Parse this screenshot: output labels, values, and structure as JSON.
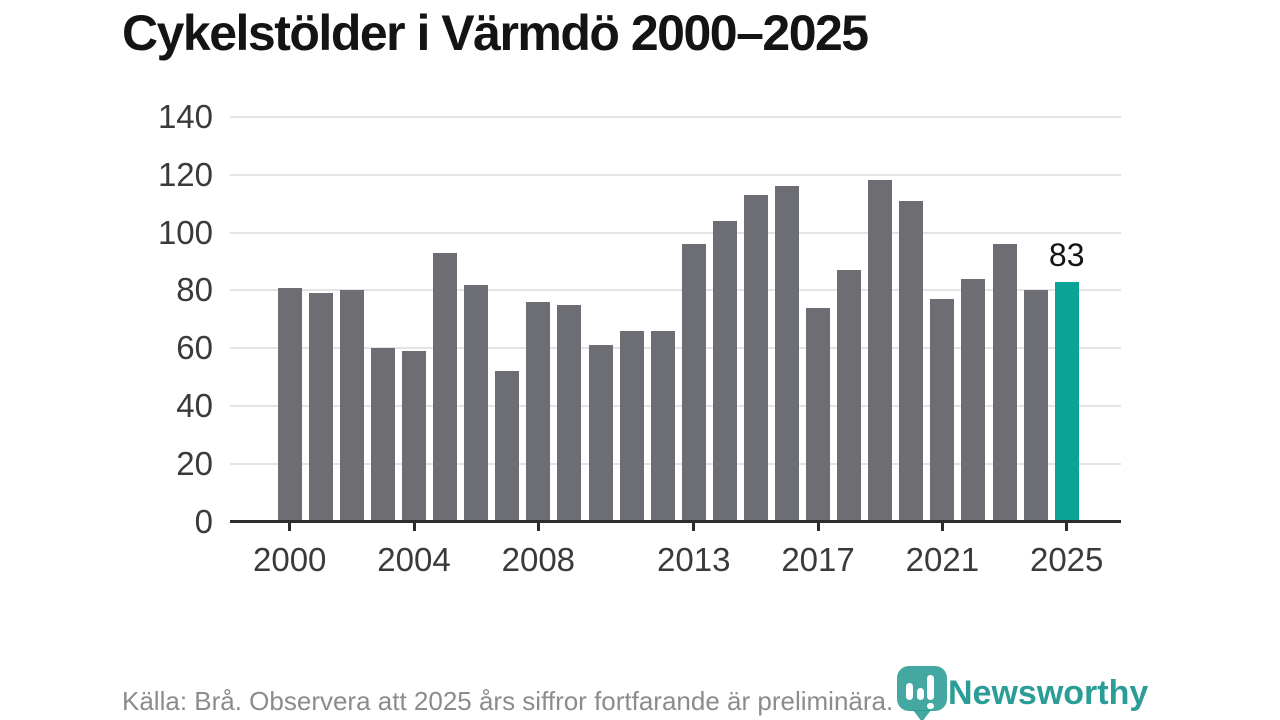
{
  "title": "Cykelstölder i Värmdö 2000–2025",
  "chart_data": {
    "type": "bar",
    "title": "Cykelstölder i Värmdö 2000–2025",
    "categories": [
      2000,
      2001,
      2002,
      2003,
      2004,
      2005,
      2006,
      2007,
      2008,
      2009,
      2010,
      2011,
      2012,
      2013,
      2014,
      2015,
      2016,
      2017,
      2018,
      2019,
      2020,
      2021,
      2022,
      2023,
      2024,
      2025
    ],
    "values": [
      81,
      79,
      80,
      60,
      59,
      93,
      82,
      52,
      76,
      75,
      61,
      66,
      66,
      96,
      104,
      113,
      116,
      74,
      87,
      118,
      111,
      77,
      84,
      96,
      80,
      83
    ],
    "xlabel": "",
    "ylabel": "",
    "ylim": [
      0,
      140
    ],
    "y_ticks": [
      0,
      20,
      40,
      60,
      80,
      100,
      120,
      140
    ],
    "x_tick_years": [
      2000,
      2004,
      2008,
      2013,
      2017,
      2021,
      2025
    ],
    "grid": "horizontal",
    "legend": "none",
    "bar_color": "#6d6d74",
    "highlight_color": "#0aa396",
    "highlight_index": 25,
    "highlight_label": "83"
  },
  "footer": {
    "source_note": "Källa: Brå. Observera att 2025 års siffror fortfarande är preliminära."
  },
  "logo": {
    "name": "Newsworthy",
    "badge_color": "#249891",
    "text_color": "#2a9d96"
  }
}
